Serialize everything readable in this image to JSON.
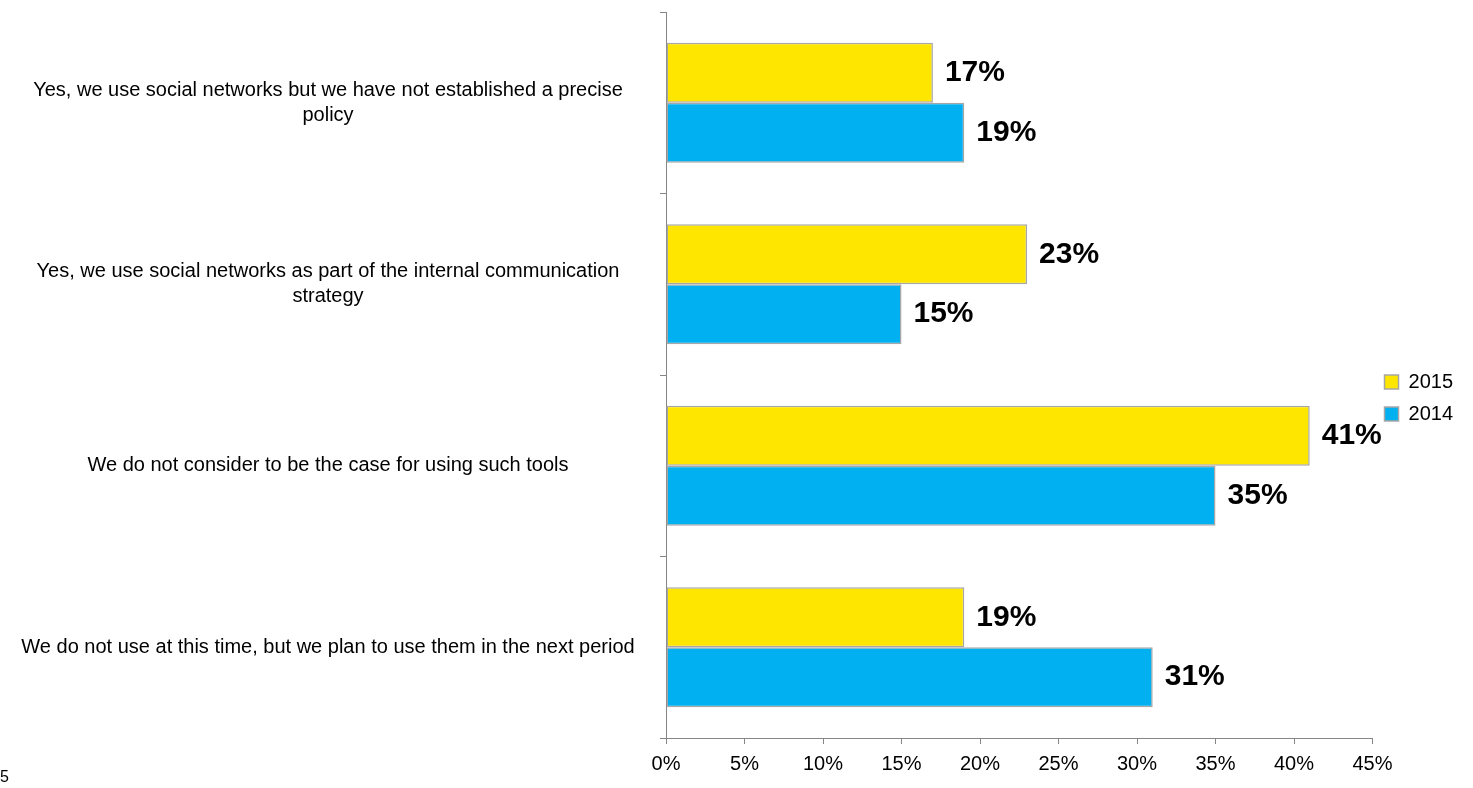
{
  "chart_data": {
    "type": "bar",
    "orientation": "horizontal",
    "categories": [
      "Yes, we use social networks but we have not established a precise policy",
      "Yes, we use social networks as part of the internal communication strategy",
      "We do not consider to be the case for using such tools",
      "We do not use at this time, but we plan to use them in the next period"
    ],
    "series": [
      {
        "name": "2015",
        "color": "#ffe600",
        "values": [
          17,
          23,
          41,
          19
        ],
        "value_labels": [
          "17%",
          "23%",
          "41%",
          "19%"
        ]
      },
      {
        "name": "2014",
        "color": "#00b0f0",
        "values": [
          19,
          15,
          35,
          31
        ],
        "value_labels": [
          "19%",
          "15%",
          "35%",
          "31%"
        ]
      }
    ],
    "xlim": [
      0,
      45
    ],
    "xticks": [
      {
        "value": 0,
        "label": "0%"
      },
      {
        "value": 5,
        "label": "5%"
      },
      {
        "value": 10,
        "label": "10%"
      },
      {
        "value": 15,
        "label": "15%"
      },
      {
        "value": 20,
        "label": "20%"
      },
      {
        "value": 25,
        "label": "25%"
      },
      {
        "value": 30,
        "label": "30%"
      },
      {
        "value": 35,
        "label": "35%"
      },
      {
        "value": 40,
        "label": "40%"
      },
      {
        "value": 45,
        "label": "45%"
      }
    ],
    "grid": false,
    "legend": "right",
    "annotations": [
      "5"
    ]
  }
}
